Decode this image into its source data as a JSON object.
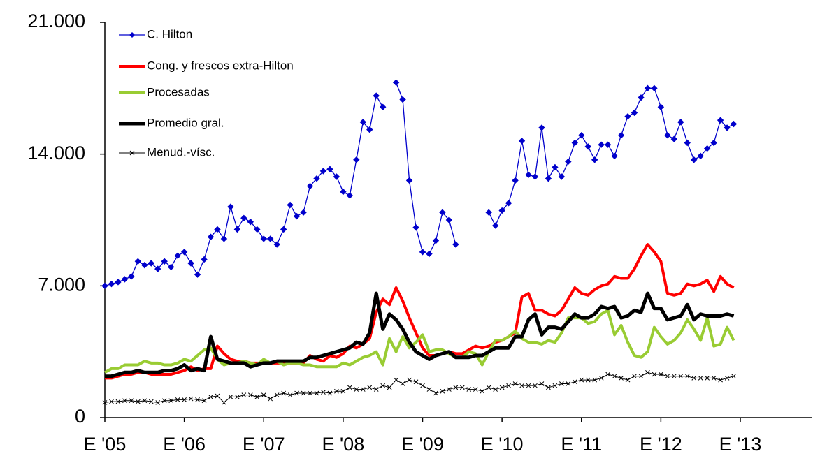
{
  "chart_data": {
    "type": "line",
    "categories": [
      "E '05",
      null,
      null,
      null,
      null,
      null,
      null,
      null,
      null,
      null,
      null,
      null,
      "E '06",
      null,
      null,
      null,
      null,
      null,
      null,
      null,
      null,
      null,
      null,
      null,
      "E '07",
      null,
      null,
      null,
      null,
      null,
      null,
      null,
      null,
      null,
      null,
      null,
      "E '08",
      null,
      null,
      null,
      null,
      null,
      null,
      null,
      null,
      null,
      null,
      null,
      "E '09",
      null,
      null,
      null,
      null,
      null,
      null,
      null,
      null,
      null,
      null,
      null,
      "E '10",
      null,
      null,
      null,
      null,
      null,
      null,
      null,
      null,
      null,
      null,
      null,
      "E '11",
      null,
      null,
      null,
      null,
      null,
      null,
      null,
      null,
      null,
      null,
      null,
      "E '12",
      null,
      null,
      null,
      null,
      null,
      null,
      null,
      null,
      null,
      null,
      null,
      "E '13"
    ],
    "ylim": [
      0,
      21000
    ],
    "yticks": [
      0,
      {
        "value": 7000,
        "label": "7.000"
      },
      {
        "value": 14000,
        "label": "14.000"
      },
      {
        "value": 21000,
        "label": "21.000"
      }
    ],
    "series": [
      {
        "name": "C. Hilton",
        "color": "#0000cc",
        "marker": "diamond",
        "width": 1.3,
        "values": [
          7000,
          7100,
          7200,
          7350,
          7500,
          8300,
          8100,
          8200,
          7900,
          8300,
          8000,
          8600,
          8800,
          8200,
          7600,
          8400,
          9600,
          10000,
          9500,
          11200,
          10000,
          10600,
          10400,
          10000,
          9500,
          9500,
          9200,
          10000,
          11300,
          10700,
          10900,
          12300,
          12700,
          13100,
          13200,
          12800,
          12000,
          11800,
          13700,
          15700,
          15300,
          17100,
          16500,
          null,
          17800,
          16900,
          12600,
          10100,
          8800,
          8700,
          9400,
          10900,
          10500,
          9200,
          null,
          null,
          null,
          null,
          10900,
          10200,
          11000,
          11400,
          12600,
          14700,
          12900,
          12800,
          15400,
          12700,
          13300,
          12800,
          13600,
          14600,
          15000,
          14400,
          13700,
          14500,
          14500,
          13900,
          15000,
          16000,
          16200,
          17000,
          17500,
          17500,
          16500,
          15000,
          14800,
          15700,
          14600,
          13700,
          13900,
          14300,
          14600,
          15800,
          15400,
          15600,
          null
        ]
      },
      {
        "name": "Cong. y frescos extra-Hilton",
        "color": "#ff0000",
        "width": 4,
        "values": [
          2100,
          2100,
          2200,
          2300,
          2300,
          2400,
          2400,
          2300,
          2300,
          2300,
          2300,
          2400,
          2500,
          2700,
          2500,
          2600,
          2600,
          3800,
          3400,
          3100,
          3000,
          3000,
          2900,
          2900,
          2900,
          2900,
          2900,
          2900,
          2900,
          2900,
          2900,
          3300,
          3100,
          3000,
          3300,
          3200,
          3400,
          3800,
          3700,
          3900,
          4200,
          5600,
          6300,
          6000,
          6900,
          6200,
          5300,
          4500,
          3700,
          3300,
          3300,
          3400,
          3500,
          3400,
          3400,
          3600,
          3800,
          3700,
          3800,
          4000,
          4100,
          4300,
          4500,
          6400,
          6600,
          5700,
          5700,
          5500,
          5400,
          5700,
          6300,
          6900,
          6600,
          6500,
          6800,
          7000,
          7100,
          7500,
          7400,
          7400,
          7900,
          8600,
          9200,
          8800,
          8300,
          6600,
          6500,
          6600,
          7100,
          7000,
          7100,
          7300,
          6700,
          7500,
          7100,
          6900,
          null
        ]
      },
      {
        "name": "Procesadas",
        "color": "#99cc33",
        "width": 4,
        "values": [
          2400,
          2600,
          2600,
          2800,
          2800,
          2800,
          3000,
          2900,
          2900,
          2800,
          2800,
          2900,
          3100,
          3000,
          3300,
          3600,
          3700,
          3100,
          2800,
          2900,
          2900,
          3000,
          2900,
          2800,
          3100,
          2900,
          3000,
          2800,
          2900,
          2900,
          2800,
          2800,
          2700,
          2700,
          2700,
          2700,
          2900,
          2800,
          3000,
          3200,
          3300,
          3500,
          2800,
          4200,
          3500,
          4300,
          3700,
          4000,
          4400,
          3500,
          3600,
          3600,
          3400,
          3200,
          3200,
          3500,
          3400,
          2800,
          3500,
          4100,
          4100,
          4300,
          4600,
          4200,
          4000,
          4000,
          3900,
          4100,
          4000,
          4500,
          5300,
          5300,
          5300,
          5000,
          5100,
          5500,
          5700,
          4400,
          4900,
          4000,
          3300,
          3200,
          3500,
          4800,
          4300,
          3900,
          4100,
          4500,
          5200,
          4700,
          4100,
          5300,
          3800,
          3900,
          4800,
          4100,
          null
        ]
      },
      {
        "name": "Promedio gral.",
        "color": "#000000",
        "width": 5,
        "values": [
          2200,
          2200,
          2300,
          2400,
          2400,
          2500,
          2400,
          2400,
          2400,
          2500,
          2500,
          2600,
          2800,
          2500,
          2600,
          2500,
          4300,
          3100,
          3000,
          2900,
          2900,
          2900,
          2700,
          2800,
          2900,
          2900,
          3000,
          3000,
          3000,
          3000,
          3000,
          3200,
          3200,
          3300,
          3400,
          3500,
          3600,
          3700,
          4000,
          3900,
          4500,
          6600,
          4700,
          5500,
          5200,
          4700,
          4000,
          3500,
          3300,
          3100,
          3300,
          3400,
          3500,
          3200,
          3200,
          3200,
          3300,
          3300,
          3500,
          3700,
          3700,
          3700,
          4300,
          4300,
          5200,
          5500,
          4400,
          4800,
          4800,
          4700,
          5100,
          5500,
          5300,
          5300,
          5500,
          5900,
          5800,
          5900,
          5300,
          5400,
          5700,
          5600,
          6600,
          5800,
          5800,
          5200,
          5300,
          5400,
          6000,
          5200,
          5500,
          5400,
          5400,
          5400,
          5500,
          5400,
          null
        ]
      },
      {
        "name": "Menud.-vísc.",
        "color": "#000000",
        "marker": "x",
        "width": 1,
        "values": [
          800,
          850,
          850,
          900,
          900,
          850,
          900,
          850,
          800,
          900,
          900,
          950,
          950,
          1000,
          950,
          900,
          1100,
          1150,
          800,
          1100,
          1100,
          1200,
          1200,
          1100,
          1200,
          1000,
          1200,
          1300,
          1200,
          1300,
          1300,
          1300,
          1300,
          1350,
          1300,
          1400,
          1400,
          1600,
          1500,
          1500,
          1600,
          1500,
          1700,
          1600,
          2000,
          1800,
          2000,
          1900,
          1700,
          1500,
          1300,
          1400,
          1500,
          1600,
          1600,
          1500,
          1500,
          1400,
          1600,
          1500,
          1600,
          1700,
          1800,
          1700,
          1700,
          1700,
          1800,
          1600,
          1700,
          1800,
          1800,
          1900,
          2000,
          2000,
          2000,
          2100,
          2300,
          2200,
          2100,
          2000,
          2200,
          2200,
          2400,
          2300,
          2300,
          2200,
          2200,
          2200,
          2200,
          2100,
          2100,
          2100,
          2100,
          2000,
          2100,
          2200,
          null
        ]
      }
    ]
  }
}
